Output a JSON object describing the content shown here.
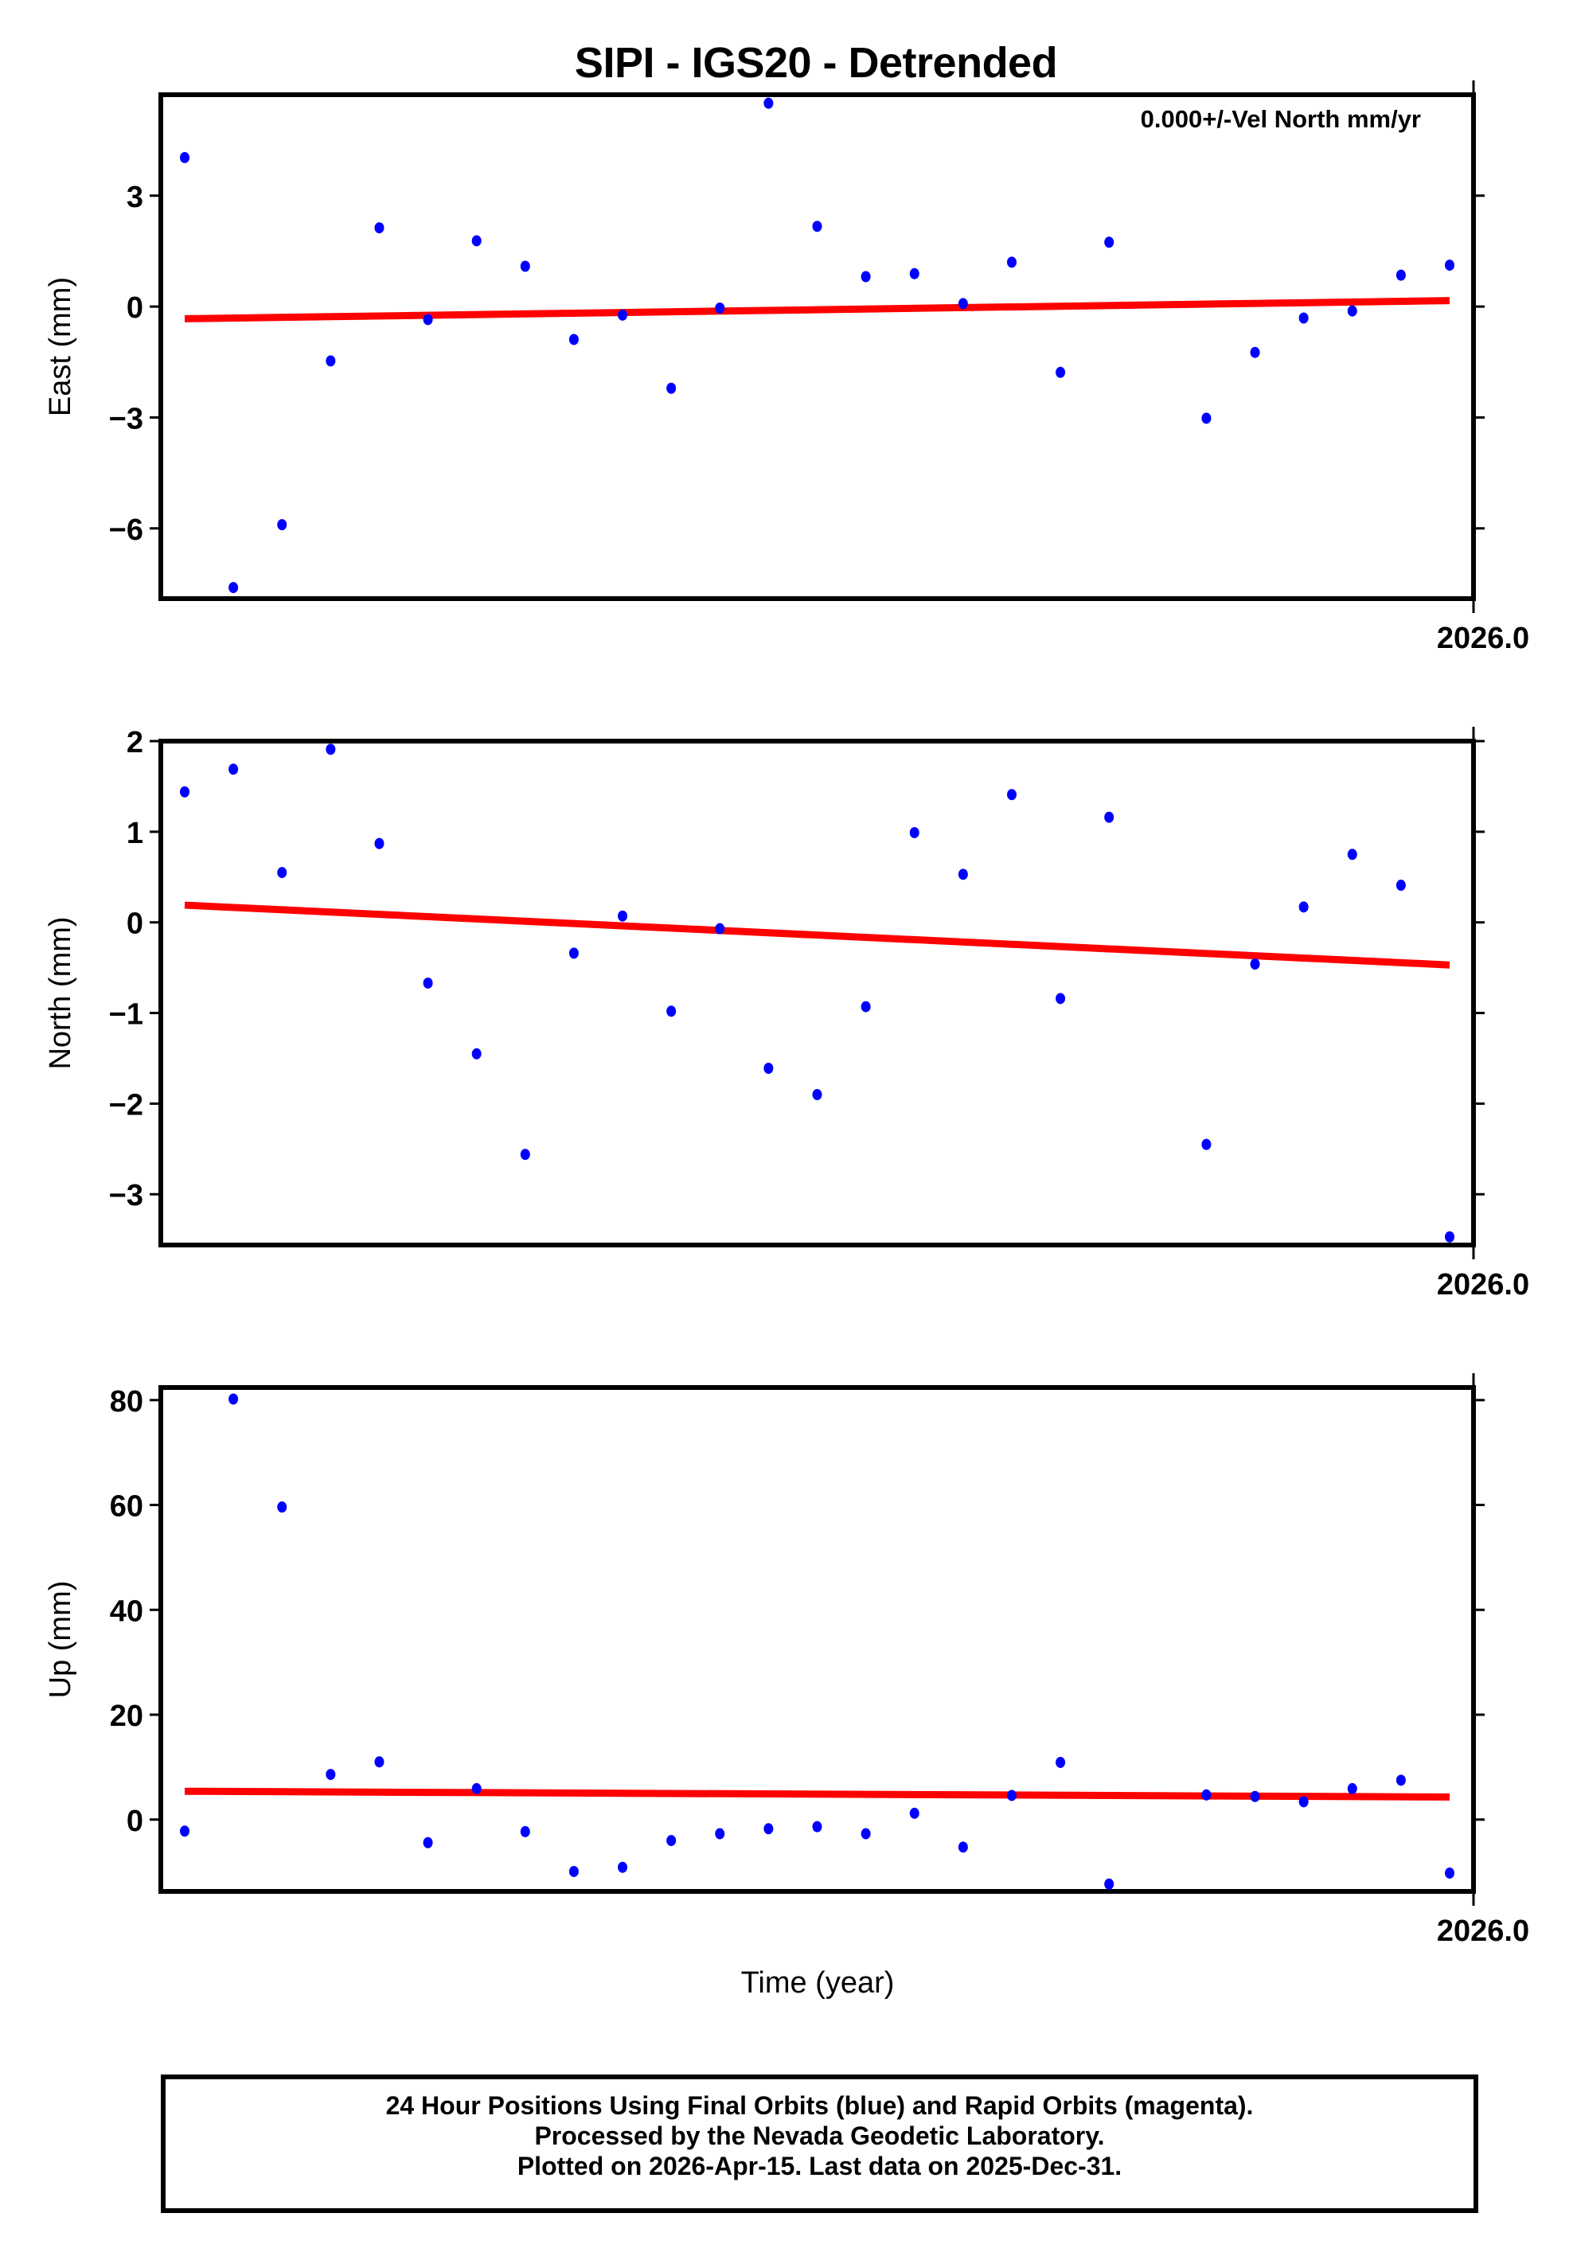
{
  "chart_data": [
    {
      "type": "scatter",
      "panel": "east",
      "title": "SIPI - IGS20 - Detrended",
      "annotation": "0.000+/-Vel North mm/yr",
      "xlabel": "",
      "ylabel": "East (mm)",
      "xtick_labels": [
        "2026.0"
      ],
      "yticks": [
        3,
        0,
        -3,
        -6
      ],
      "ylim": [
        -7.9,
        5.73
      ],
      "slot_count": 27,
      "x_slots": [
        0,
        1,
        2,
        3,
        4,
        5,
        6,
        7,
        8,
        9,
        10,
        11,
        12,
        13,
        14,
        15,
        16,
        17,
        18,
        19,
        21,
        22,
        23,
        24,
        25,
        26
      ],
      "values": [
        4.03,
        -7.6,
        -5.9,
        -1.47,
        2.13,
        -0.35,
        1.78,
        1.09,
        -0.89,
        -0.23,
        -2.21,
        -0.04,
        5.5,
        2.17,
        0.81,
        0.89,
        0.08,
        1.2,
        -1.78,
        1.74,
        -3.02,
        -1.24,
        -0.31,
        -0.12,
        0.85,
        1.12
      ],
      "trend": {
        "start": -0.33,
        "end": 0.16
      },
      "series_color": "#0000ff",
      "trend_color": "#ff0000"
    },
    {
      "type": "scatter",
      "panel": "north",
      "xlabel": "",
      "ylabel": "North (mm)",
      "xtick_labels": [
        "2026.0"
      ],
      "yticks": [
        2,
        1,
        0,
        -1,
        -2,
        -3
      ],
      "ylim": [
        -3.56,
        2.0
      ],
      "slot_count": 27,
      "x_slots": [
        0,
        1,
        2,
        3,
        4,
        5,
        6,
        7,
        8,
        9,
        10,
        11,
        12,
        13,
        14,
        15,
        16,
        17,
        18,
        19,
        21,
        22,
        23,
        24,
        25,
        26
      ],
      "values": [
        1.44,
        1.69,
        0.55,
        1.91,
        0.87,
        -0.67,
        -1.45,
        -2.56,
        -0.34,
        0.07,
        -0.98,
        -0.07,
        -1.61,
        -1.9,
        -0.93,
        0.99,
        0.53,
        1.41,
        -0.84,
        1.16,
        -2.45,
        -0.46,
        0.17,
        0.75,
        0.41,
        -3.47
      ],
      "trend": {
        "start": 0.19,
        "end": -0.47
      },
      "series_color": "#0000ff",
      "trend_color": "#ff0000"
    },
    {
      "type": "scatter",
      "panel": "up",
      "xlabel": "Time (year)",
      "ylabel": "Up (mm)",
      "xtick_labels": [
        "2026.0"
      ],
      "yticks": [
        80,
        60,
        40,
        20,
        0
      ],
      "ylim": [
        -13.7,
        82.4
      ],
      "slot_count": 27,
      "x_slots": [
        0,
        1,
        2,
        3,
        4,
        5,
        6,
        7,
        8,
        9,
        10,
        11,
        12,
        13,
        14,
        15,
        16,
        17,
        18,
        19,
        21,
        22,
        23,
        24,
        25,
        26
      ],
      "values": [
        -2.2,
        80.2,
        59.6,
        8.6,
        11.0,
        -4.4,
        5.9,
        -2.3,
        -9.9,
        -9.1,
        -4.0,
        -2.7,
        -1.75,
        -1.35,
        -2.7,
        1.2,
        -5.25,
        4.6,
        10.9,
        -12.3,
        4.7,
        4.4,
        3.4,
        5.9,
        7.5,
        -10.2
      ],
      "trend": {
        "start": 5.4,
        "end": 4.3
      },
      "series_color": "#0000ff",
      "trend_color": "#ff0000"
    }
  ],
  "header": {
    "title": "SIPI - IGS20 - Detrended"
  },
  "panels": {
    "east": {
      "ylabel": "East (mm)",
      "annotation": "0.000+/-Vel North mm/yr",
      "xtick": "2026.0"
    },
    "north": {
      "ylabel": "North (mm)",
      "xtick": "2026.0"
    },
    "up": {
      "ylabel": "Up (mm)",
      "xtick": "2026.0"
    }
  },
  "xaxis_label": "Time (year)",
  "footer": {
    "line1": "24 Hour Positions Using Final Orbits (blue) and Rapid Orbits (magenta).",
    "line2": "Processed by the Nevada Geodetic Laboratory.",
    "line3": "Plotted on 2026-Apr-15. Last data on 2025-Dec-31."
  }
}
